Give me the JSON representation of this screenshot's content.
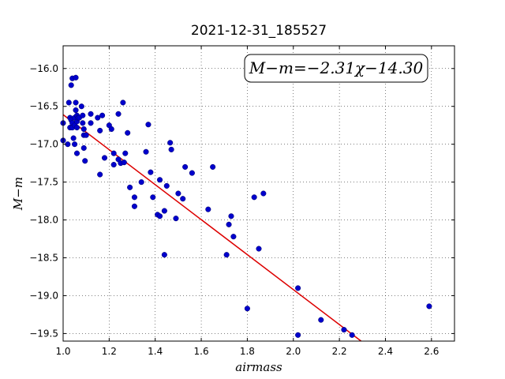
{
  "chart_data": {
    "type": "scatter",
    "title": "2021-12-31_185527",
    "xlabel": "airmass",
    "ylabel": "M−m",
    "annotation": "M−m=−2.31χ−14.30",
    "xlim": [
      1.0,
      2.7
    ],
    "ylim": [
      -19.6,
      -15.7
    ],
    "y_inverted": true,
    "grid": true,
    "x_ticks": [
      "1.0",
      "1.2",
      "1.4",
      "1.6",
      "1.8",
      "2.0",
      "2.2",
      "2.4",
      "2.6"
    ],
    "y_ticks": [
      "−16.0",
      "−16.5",
      "−17.0",
      "−17.5",
      "−18.0",
      "−18.5",
      "−19.0",
      "−19.5"
    ],
    "x_tick_values": [
      1.0,
      1.2,
      1.4,
      1.6,
      1.8,
      2.0,
      2.2,
      2.4,
      2.6
    ],
    "y_tick_values": [
      -16.0,
      -16.5,
      -17.0,
      -17.5,
      -18.0,
      -18.5,
      -19.0,
      -19.5
    ],
    "fit": {
      "slope": -2.31,
      "intercept": -14.3
    },
    "colors": {
      "points": "#0000cc",
      "fit_line": "#dd0000"
    },
    "points": [
      [
        1.0,
        -16.72
      ],
      [
        1.0,
        -16.95
      ],
      [
        1.02,
        -17.0
      ],
      [
        1.025,
        -16.45
      ],
      [
        1.03,
        -16.65
      ],
      [
        1.03,
        -16.78
      ],
      [
        1.035,
        -16.68
      ],
      [
        1.035,
        -16.22
      ],
      [
        1.04,
        -16.13
      ],
      [
        1.04,
        -16.72
      ],
      [
        1.04,
        -16.78
      ],
      [
        1.045,
        -16.92
      ],
      [
        1.05,
        -16.65
      ],
      [
        1.05,
        -16.75
      ],
      [
        1.05,
        -17.0
      ],
      [
        1.055,
        -16.12
      ],
      [
        1.055,
        -16.45
      ],
      [
        1.055,
        -16.55
      ],
      [
        1.06,
        -16.62
      ],
      [
        1.06,
        -16.7
      ],
      [
        1.06,
        -16.78
      ],
      [
        1.06,
        -17.12
      ],
      [
        1.065,
        -16.65
      ],
      [
        1.07,
        -16.65
      ],
      [
        1.08,
        -16.5
      ],
      [
        1.085,
        -16.62
      ],
      [
        1.085,
        -16.72
      ],
      [
        1.09,
        -17.05
      ],
      [
        1.09,
        -16.8
      ],
      [
        1.09,
        -16.88
      ],
      [
        1.095,
        -17.22
      ],
      [
        1.1,
        -16.88
      ],
      [
        1.12,
        -16.6
      ],
      [
        1.12,
        -16.72
      ],
      [
        1.15,
        -16.65
      ],
      [
        1.16,
        -16.82
      ],
      [
        1.16,
        -17.4
      ],
      [
        1.17,
        -16.62
      ],
      [
        1.18,
        -17.18
      ],
      [
        1.2,
        -16.75
      ],
      [
        1.21,
        -16.8
      ],
      [
        1.22,
        -17.12
      ],
      [
        1.22,
        -17.27
      ],
      [
        1.24,
        -16.6
      ],
      [
        1.24,
        -17.2
      ],
      [
        1.25,
        -17.25
      ],
      [
        1.26,
        -16.45
      ],
      [
        1.265,
        -17.24
      ],
      [
        1.27,
        -17.12
      ],
      [
        1.28,
        -16.85
      ],
      [
        1.29,
        -17.57
      ],
      [
        1.31,
        -17.7
      ],
      [
        1.31,
        -17.82
      ],
      [
        1.34,
        -17.5
      ],
      [
        1.36,
        -17.1
      ],
      [
        1.37,
        -16.74
      ],
      [
        1.38,
        -17.37
      ],
      [
        1.39,
        -17.7
      ],
      [
        1.41,
        -17.93
      ],
      [
        1.42,
        -17.95
      ],
      [
        1.42,
        -17.47
      ],
      [
        1.44,
        -17.88
      ],
      [
        1.44,
        -18.46
      ],
      [
        1.45,
        -17.55
      ],
      [
        1.465,
        -16.98
      ],
      [
        1.47,
        -17.07
      ],
      [
        1.49,
        -17.98
      ],
      [
        1.5,
        -17.65
      ],
      [
        1.52,
        -17.72
      ],
      [
        1.53,
        -17.3
      ],
      [
        1.56,
        -17.38
      ],
      [
        1.63,
        -17.86
      ],
      [
        1.65,
        -17.3
      ],
      [
        1.71,
        -18.46
      ],
      [
        1.72,
        -18.06
      ],
      [
        1.73,
        -17.95
      ],
      [
        1.74,
        -18.22
      ],
      [
        1.8,
        -19.17
      ],
      [
        1.83,
        -17.7
      ],
      [
        1.85,
        -18.38
      ],
      [
        1.87,
        -17.65
      ],
      [
        2.02,
        -18.9
      ],
      [
        2.02,
        -19.52
      ],
      [
        2.12,
        -19.32
      ],
      [
        2.22,
        -19.45
      ],
      [
        2.255,
        -19.52
      ],
      [
        2.59,
        -19.14
      ]
    ]
  }
}
